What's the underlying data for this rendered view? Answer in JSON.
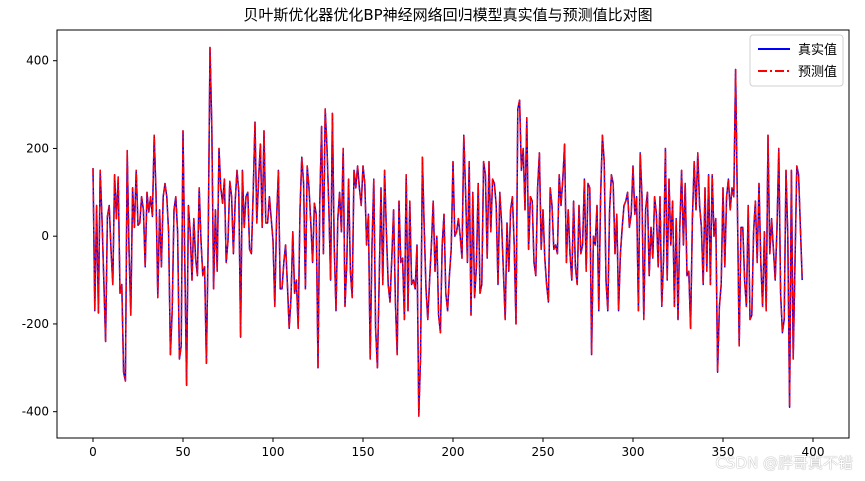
{
  "chart_data": {
    "type": "line",
    "title": "贝叶斯优化器优化BP神经网络回归模型真实值与预测值比对图",
    "xlabel": "",
    "ylabel": "",
    "xlim": [
      -20,
      420
    ],
    "ylim": [
      -460,
      470
    ],
    "x_ticks": [
      0,
      50,
      100,
      150,
      200,
      250,
      300,
      350,
      400
    ],
    "y_ticks": [
      -400,
      -200,
      0,
      200,
      400
    ],
    "grid": false,
    "legend_position": "top-right",
    "series": [
      {
        "name": "真实值",
        "color": "#0000ff",
        "linestyle": "solid"
      },
      {
        "name": "预测值",
        "color": "#ff0000",
        "linestyle": "dashdot"
      }
    ],
    "x": "0..400",
    "actual_values": [
      155,
      -170,
      70,
      -175,
      150,
      40,
      -100,
      -240,
      45,
      70,
      -30,
      -110,
      140,
      40,
      135,
      -130,
      -110,
      -310,
      -330,
      195,
      -30,
      -180,
      110,
      20,
      150,
      25,
      30,
      90,
      60,
      -70,
      100,
      55,
      90,
      45,
      230,
      100,
      -140,
      60,
      -70,
      90,
      120,
      90,
      10,
      -270,
      -170,
      60,
      90,
      10,
      -280,
      -250,
      240,
      -60,
      -340,
      70,
      10,
      -100,
      40,
      -50,
      -90,
      110,
      -10,
      -90,
      -70,
      -290,
      -10,
      430,
      250,
      -120,
      60,
      -80,
      200,
      110,
      75,
      130,
      -60,
      -10,
      125,
      90,
      -40,
      80,
      150,
      100,
      -230,
      150,
      20,
      90,
      100,
      -30,
      -40,
      100,
      260,
      30,
      130,
      210,
      20,
      240,
      30,
      30,
      90,
      40,
      -10,
      -160,
      40,
      150,
      -120,
      -120,
      -60,
      -20,
      -110,
      -210,
      -140,
      10,
      -130,
      -100,
      -210,
      60,
      180,
      120,
      -120,
      160,
      110,
      30,
      -60,
      75,
      50,
      -300,
      80,
      250,
      -40,
      290,
      200,
      70,
      -100,
      280,
      -20,
      -170,
      40,
      100,
      10,
      200,
      -160,
      -60,
      130,
      -80,
      -140,
      150,
      110,
      160,
      110,
      70,
      160,
      120,
      -20,
      50,
      -280,
      -20,
      130,
      -210,
      -300,
      -100,
      110,
      -110,
      150,
      10,
      -110,
      -150,
      -50,
      60,
      -150,
      -270,
      80,
      -60,
      -50,
      -190,
      140,
      -170,
      80,
      -110,
      -100,
      -120,
      -20,
      -410,
      -270,
      180,
      20,
      -120,
      -190,
      -100,
      -20,
      80,
      -80,
      0,
      -180,
      -220,
      -20,
      50,
      -130,
      -170,
      -90,
      -30,
      170,
      0,
      10,
      40,
      0,
      -50,
      230,
      100,
      -60,
      170,
      -180,
      100,
      -140,
      -70,
      120,
      -130,
      -110,
      170,
      140,
      -50,
      170,
      10,
      130,
      120,
      70,
      -110,
      100,
      30,
      -80,
      -190,
      30,
      -80,
      60,
      90,
      -20,
      -200,
      290,
      310,
      150,
      200,
      60,
      270,
      -30,
      90,
      80,
      -60,
      -90,
      110,
      190,
      -30,
      60,
      -50,
      -110,
      -150,
      110,
      70,
      -30,
      -20,
      -40,
      140,
      70,
      130,
      210,
      -60,
      60,
      -40,
      -100,
      80,
      -70,
      -110,
      70,
      -40,
      -20,
      130,
      -80,
      120,
      110,
      -270,
      0,
      -20,
      70,
      -170,
      90,
      230,
      170,
      -100,
      -170,
      60,
      140,
      120,
      -40,
      50,
      -170,
      -40,
      20,
      70,
      80,
      100,
      20,
      50,
      160,
      50,
      90,
      -170,
      190,
      90,
      -190,
      60,
      100,
      -90,
      20,
      -50,
      90,
      50,
      -70,
      90,
      -160,
      -50,
      200,
      -100,
      130,
      -20,
      80,
      -160,
      40,
      -190,
      20,
      150,
      -20,
      120,
      -90,
      -80,
      -210,
      40,
      170,
      60,
      190,
      70,
      20,
      -110,
      110,
      -80,
      140,
      -110,
      140,
      0,
      40,
      -310,
      -160,
      -110,
      110,
      -70,
      90,
      130,
      60,
      110,
      90,
      380,
      70,
      -250,
      20,
      20,
      -100,
      -160,
      70,
      -190,
      -180,
      10,
      80,
      -60,
      120,
      -60,
      -160,
      10,
      -170,
      230,
      -40,
      40,
      -30,
      -100,
      20,
      200,
      -130,
      -220,
      -190,
      150,
      0,
      -390,
      150,
      -280,
      -60,
      160,
      140,
      20,
      -100
    ]
  },
  "watermark": {
    "text": "CSDN @胖哥真不错"
  }
}
